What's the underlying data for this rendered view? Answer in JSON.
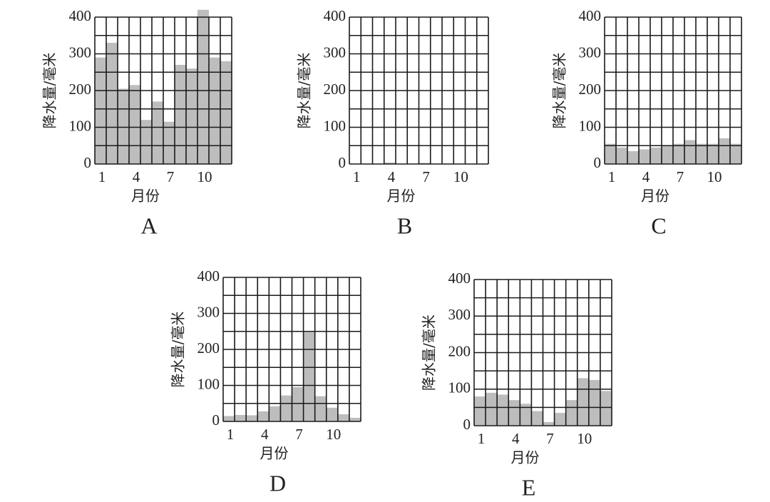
{
  "chart_data": [
    {
      "type": "bar",
      "title": "A",
      "xlabel": "月份",
      "ylabel": "降水量/毫米",
      "color": "#bdbdbd",
      "categories": [
        "1",
        null,
        null,
        "4",
        null,
        null,
        "7",
        null,
        null,
        "10",
        null,
        null
      ],
      "values": [
        290,
        330,
        205,
        215,
        120,
        170,
        115,
        270,
        260,
        420,
        290,
        280
      ],
      "ylim": [
        0,
        400
      ],
      "yticks": [
        0,
        100,
        200,
        300,
        400
      ],
      "ygrid": [
        0,
        50,
        100,
        150,
        200,
        250,
        300,
        350,
        400
      ]
    },
    {
      "type": "bar",
      "title": "B",
      "xlabel": "月份",
      "ylabel": "降水量/毫米",
      "color": "#bdbdbd",
      "categories": [
        "1",
        null,
        null,
        "4",
        null,
        null,
        "7",
        null,
        null,
        "10",
        null,
        null
      ],
      "values": [
        0,
        0,
        0,
        4,
        0,
        0,
        3,
        0,
        0,
        0,
        0,
        0
      ],
      "ylim": [
        0,
        400
      ],
      "yticks": [
        0,
        100,
        200,
        300,
        400
      ],
      "ygrid": [
        0,
        50,
        100,
        150,
        200,
        250,
        300,
        350,
        400
      ]
    },
    {
      "type": "bar",
      "title": "C",
      "xlabel": "月份",
      "ylabel": "降水量/毫米",
      "color": "#bdbdbd",
      "categories": [
        "1",
        null,
        null,
        "4",
        null,
        null,
        "7",
        null,
        null,
        "10",
        null,
        null
      ],
      "values": [
        55,
        45,
        35,
        40,
        45,
        50,
        55,
        65,
        55,
        55,
        70,
        55
      ],
      "ylim": [
        0,
        400
      ],
      "yticks": [
        0,
        100,
        200,
        300,
        400
      ],
      "ygrid": [
        0,
        50,
        100,
        150,
        200,
        250,
        300,
        350,
        400
      ]
    },
    {
      "type": "bar",
      "title": "D",
      "xlabel": "月份",
      "ylabel": "降水量/毫米",
      "color": "#bdbdbd",
      "categories": [
        "1",
        null,
        null,
        "4",
        null,
        null,
        "7",
        null,
        null,
        "10",
        null,
        null
      ],
      "values": [
        15,
        18,
        17,
        28,
        42,
        72,
        95,
        248,
        70,
        38,
        20,
        10
      ],
      "ylim": [
        0,
        400
      ],
      "yticks": [
        0,
        100,
        200,
        300,
        400
      ],
      "ygrid": [
        0,
        50,
        100,
        150,
        200,
        250,
        300,
        350,
        400
      ]
    },
    {
      "type": "bar",
      "title": "E",
      "xlabel": "月份",
      "ylabel": "降水量/毫米",
      "color": "#bdbdbd",
      "categories": [
        "1",
        null,
        null,
        "4",
        null,
        null,
        "7",
        null,
        null,
        "10",
        null,
        null
      ],
      "values": [
        80,
        90,
        85,
        70,
        60,
        40,
        10,
        35,
        70,
        130,
        125,
        95
      ],
      "ylim": [
        0,
        400
      ],
      "yticks": [
        0,
        100,
        200,
        300,
        400
      ],
      "ygrid": [
        0,
        50,
        100,
        150,
        200,
        250,
        300,
        350,
        400
      ]
    }
  ]
}
